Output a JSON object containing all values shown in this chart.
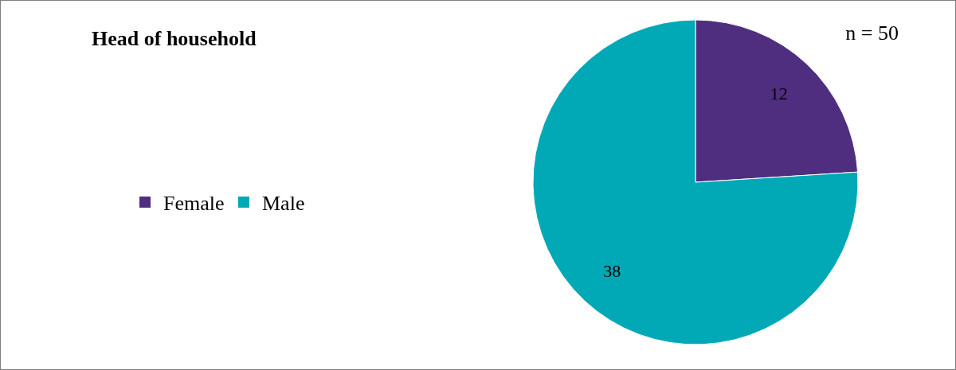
{
  "chart_data": {
    "type": "pie",
    "title": "Head of household",
    "categories": [
      "Female",
      "Male"
    ],
    "values": [
      12,
      38
    ],
    "colors": [
      "#4f2d7f",
      "#00a9b5"
    ],
    "data_labels": true,
    "legend": "left",
    "annotations": [
      "n = 50"
    ]
  }
}
